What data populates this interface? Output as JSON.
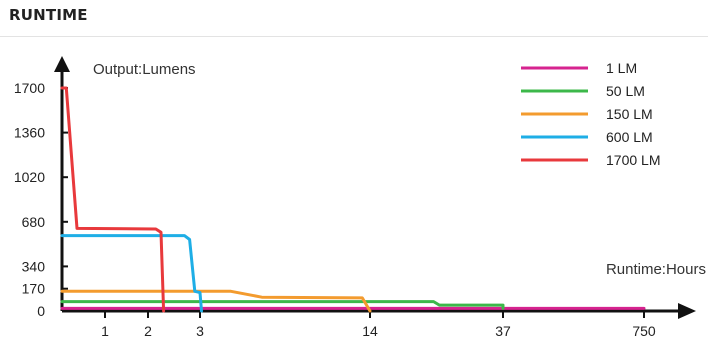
{
  "section": {
    "title": "RUNTIME"
  },
  "chart_data": {
    "type": "line",
    "title": "",
    "ylabel": "Output:Lumens",
    "xlabel": "Runtime:Hours",
    "x_ticks": [
      "1",
      "2",
      "3",
      "14",
      "37",
      "750"
    ],
    "y_ticks": [
      0,
      170,
      340,
      680,
      1020,
      1360,
      1700
    ],
    "ylim": [
      0,
      1850
    ],
    "legend_position": "top-right",
    "series": [
      {
        "name": "1 LM",
        "color": "#d6238f",
        "points": [
          [
            0,
            20
          ],
          [
            750,
            20
          ]
        ]
      },
      {
        "name": "50 LM",
        "color": "#3cb84a",
        "points": [
          [
            0,
            72
          ],
          [
            25,
            72
          ],
          [
            26,
            45
          ],
          [
            37,
            45
          ],
          [
            37,
            20
          ]
        ]
      },
      {
        "name": "150 LM",
        "color": "#f39b2e",
        "points": [
          [
            0,
            150
          ],
          [
            5,
            150
          ],
          [
            7,
            105
          ],
          [
            13.5,
            100
          ],
          [
            14,
            0
          ]
        ]
      },
      {
        "name": "600 LM",
        "color": "#1eaee6",
        "points": [
          [
            0,
            575
          ],
          [
            2.7,
            575
          ],
          [
            2.8,
            545
          ],
          [
            2.9,
            150
          ],
          [
            3,
            140
          ],
          [
            3.1,
            0
          ]
        ]
      },
      {
        "name": "1700 LM",
        "color": "#e8393c",
        "points": [
          [
            0,
            1700
          ],
          [
            0.1,
            1700
          ],
          [
            0.35,
            630
          ],
          [
            2.15,
            625
          ],
          [
            2.25,
            600
          ],
          [
            2.3,
            0
          ]
        ]
      }
    ]
  }
}
